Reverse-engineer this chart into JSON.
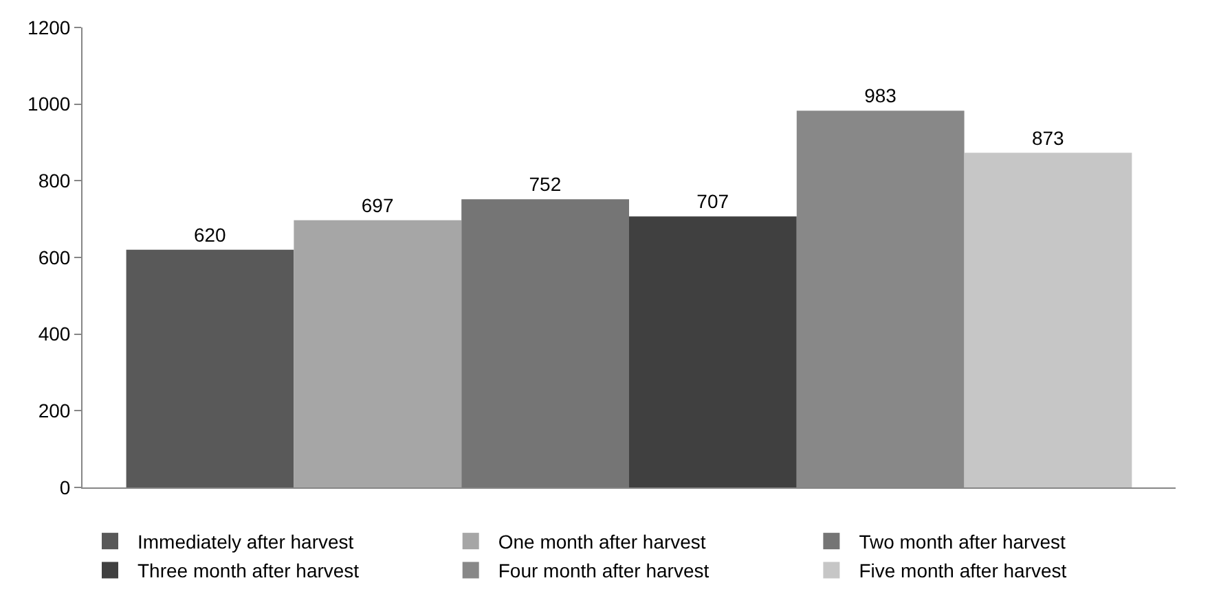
{
  "chart_data": {
    "type": "bar",
    "categories": [
      null
    ],
    "series": [
      {
        "name": "Immediately after harvest",
        "color": "#595959",
        "values": [
          620
        ]
      },
      {
        "name": "One month after harvest",
        "color": "#a6a6a6",
        "values": [
          697
        ]
      },
      {
        "name": "Two month after harvest",
        "color": "#757575",
        "values": [
          752
        ]
      },
      {
        "name": "Three month after harvest",
        "color": "#404040",
        "values": [
          707
        ]
      },
      {
        "name": "Four month after harvest",
        "color": "#888888",
        "values": [
          983
        ]
      },
      {
        "name": "Five month after harvest",
        "color": "#c6c6c6",
        "values": [
          873
        ]
      }
    ],
    "ylim": [
      0,
      1200
    ],
    "yticks": [
      0,
      200,
      400,
      600,
      800,
      1000,
      1200
    ],
    "data_labels": true,
    "legend": "bottom"
  }
}
